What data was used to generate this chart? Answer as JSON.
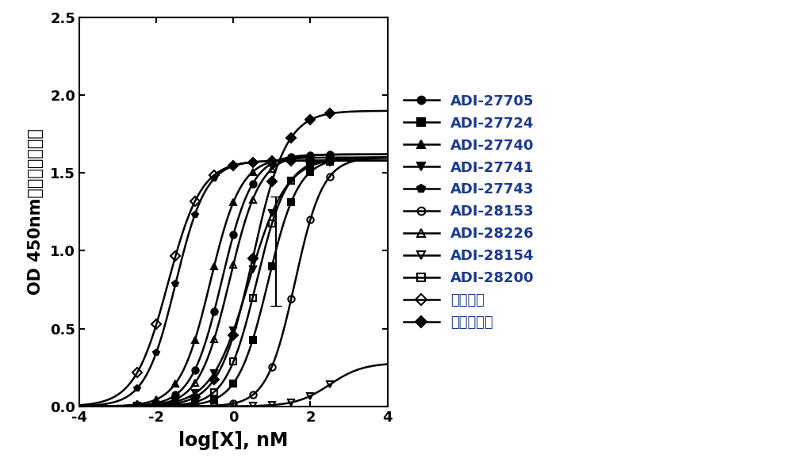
{
  "title": "",
  "xlabel": "log[X], nM",
  "ylabel": "OD 450nm（特异性结合）",
  "xlim": [
    -4,
    4
  ],
  "ylim": [
    0,
    2.5
  ],
  "xticks": [
    -4,
    -2,
    0,
    2,
    4
  ],
  "yticks": [
    0.0,
    0.5,
    1.0,
    1.5,
    2.0,
    2.5
  ],
  "series": [
    {
      "label": "ADI-27705",
      "marker": "o",
      "fillstyle": "full",
      "ec50_log": -0.3,
      "top": 1.62,
      "bottom": 0.0,
      "hill": 1.1
    },
    {
      "label": "ADI-27724",
      "marker": "s",
      "fillstyle": "full",
      "ec50_log": 0.9,
      "top": 1.6,
      "bottom": 0.0,
      "hill": 1.1,
      "error_x": 1.1,
      "error_y": 0.35
    },
    {
      "label": "ADI-27740",
      "marker": "^",
      "fillstyle": "full",
      "ec50_log": -0.6,
      "top": 1.6,
      "bottom": 0.0,
      "hill": 1.1
    },
    {
      "label": "ADI-27741",
      "marker": "v",
      "fillstyle": "full",
      "ec50_log": 0.4,
      "top": 1.6,
      "bottom": 0.0,
      "hill": 0.9
    },
    {
      "label": "ADI-27743",
      "marker": "o",
      "fillstyle": "full",
      "ec50_log": -1.5,
      "top": 1.58,
      "bottom": 0.0,
      "hill": 1.1
    },
    {
      "label": "ADI-28153",
      "marker": "o",
      "fillstyle": "none",
      "ec50_log": 1.6,
      "top": 1.6,
      "bottom": 0.0,
      "hill": 1.2
    },
    {
      "label": "ADI-28226",
      "marker": "^",
      "fillstyle": "none",
      "ec50_log": -0.1,
      "top": 1.62,
      "bottom": 0.0,
      "hill": 1.1
    },
    {
      "label": "ADI-28154",
      "marker": "v",
      "fillstyle": "none",
      "ec50_log": 2.5,
      "top": 0.28,
      "bottom": 0.0,
      "hill": 1.0
    },
    {
      "label": "ADI-28200",
      "marker": "s",
      "fillstyle": "none",
      "ec50_log": 0.6,
      "top": 1.6,
      "bottom": 0.0,
      "hill": 1.1
    },
    {
      "label": "阳性对照",
      "marker": "D",
      "fillstyle": "none",
      "ec50_log": -1.7,
      "top": 1.58,
      "bottom": 0.0,
      "hill": 1.0
    },
    {
      "label": "同种型对照",
      "marker": "D",
      "fillstyle": "full",
      "ec50_log": 0.5,
      "top": 1.9,
      "bottom": 0.0,
      "hill": 1.0
    }
  ],
  "legend_text_color": "#1a3a8f",
  "background_color": "#ffffff",
  "font_color": "#000000",
  "font_size_label": 15,
  "font_size_tick": 13,
  "font_size_legend": 13
}
